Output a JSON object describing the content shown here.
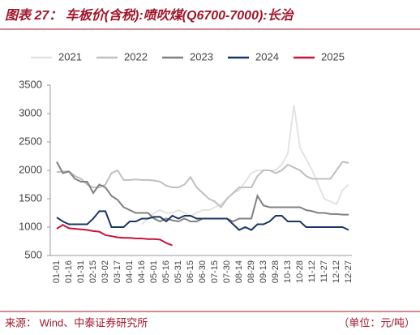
{
  "chart_data": {
    "type": "line",
    "title": "图表 27：  车板价(含税):喷吹煤(Q6700-7000):长治",
    "source": "来源：  Wind、中泰证券研究所",
    "unit": "（单位：元/吨）",
    "categories": [
      "01-01",
      null,
      "01-16",
      null,
      "01-31",
      null,
      "02-15",
      null,
      "03-02",
      null,
      "03-17",
      null,
      "04-01",
      null,
      "04-16",
      null,
      "05-01",
      null,
      "05-16",
      null,
      "05-31",
      null,
      "06-15",
      null,
      "06-30",
      null,
      "07-15",
      null,
      "07-30",
      null,
      "08-14",
      null,
      "08-29",
      null,
      "09-13",
      null,
      "09-28",
      null,
      "10-13",
      null,
      "10-28",
      null,
      "11-12",
      null,
      "11-27",
      null,
      "12-12",
      null,
      "12-27"
    ],
    "ylim": [
      500,
      3500
    ],
    "yticks": [
      500,
      1000,
      1500,
      2000,
      2500,
      3000,
      3500
    ],
    "legend": "top",
    "series": [
      {
        "name": "2021",
        "color": "#e3e3e3",
        "values": [
          null,
          null,
          null,
          null,
          null,
          null,
          null,
          null,
          null,
          null,
          null,
          null,
          null,
          null,
          1050,
          1150,
          1250,
          1300,
          1250,
          1250,
          1300,
          1250,
          1200,
          1250,
          1300,
          1300,
          1350,
          1400,
          1500,
          1600,
          1650,
          1800,
          1950,
          2000,
          2000,
          2000,
          2000,
          2100,
          2300,
          3150,
          2400,
          2200,
          2000,
          1750,
          1500,
          1450,
          1400,
          1650,
          1750
        ]
      },
      {
        "name": "2022",
        "color": "#bfbfbf",
        "values": [
          1970,
          1980,
          1980,
          1900,
          1850,
          1750,
          1700,
          1700,
          1750,
          1950,
          2000,
          1830,
          1830,
          1840,
          1830,
          1830,
          1820,
          1800,
          1730,
          1700,
          1700,
          1750,
          1880,
          1700,
          1600,
          1500,
          1450,
          1350,
          1500,
          1600,
          1700,
          1700,
          1700,
          1900,
          2000,
          2000,
          1950,
          2000,
          2100,
          2050,
          2000,
          1900,
          1850,
          1850,
          1850,
          1850,
          2000,
          2150,
          2130
        ]
      },
      {
        "name": "2023",
        "color": "#808080",
        "values": [
          2150,
          1950,
          1980,
          1850,
          1800,
          1800,
          1600,
          1750,
          1700,
          1550,
          1480,
          1350,
          1300,
          1250,
          1250,
          1250,
          1150,
          1100,
          1150,
          1120,
          1100,
          1150,
          1100,
          1100,
          1150,
          1150,
          1150,
          1150,
          1150,
          1100,
          1150,
          1150,
          1150,
          1550,
          1380,
          1350,
          1350,
          1350,
          1350,
          1350,
          1350,
          1300,
          1280,
          1250,
          1250,
          1230,
          1230,
          1220,
          1220
        ]
      },
      {
        "name": "2024",
        "color": "#1b3566",
        "values": [
          1170,
          1100,
          1050,
          1050,
          1050,
          1050,
          1150,
          1280,
          1280,
          1000,
          1000,
          1000,
          1100,
          1100,
          1150,
          1150,
          1180,
          1180,
          1100,
          1200,
          1150,
          1200,
          1200,
          1150,
          1150,
          1150,
          1150,
          1150,
          1150,
          1050,
          950,
          1000,
          950,
          1050,
          1050,
          1100,
          1200,
          1200,
          1100,
          1100,
          1100,
          1000,
          1000,
          1000,
          1000,
          1000,
          1000,
          1000,
          950
        ]
      },
      {
        "name": "2025",
        "color": "#c8143c",
        "values": [
          970,
          1040,
          980,
          970,
          960,
          950,
          930,
          920,
          860,
          840,
          820,
          810,
          810,
          800,
          800,
          790,
          790,
          780,
          720,
          680,
          null,
          null,
          null,
          null,
          null,
          null,
          null,
          null,
          null,
          null,
          null,
          null,
          null,
          null,
          null,
          null,
          null,
          null,
          null,
          null,
          null,
          null,
          null,
          null,
          null,
          null,
          null,
          null,
          null
        ]
      }
    ]
  }
}
